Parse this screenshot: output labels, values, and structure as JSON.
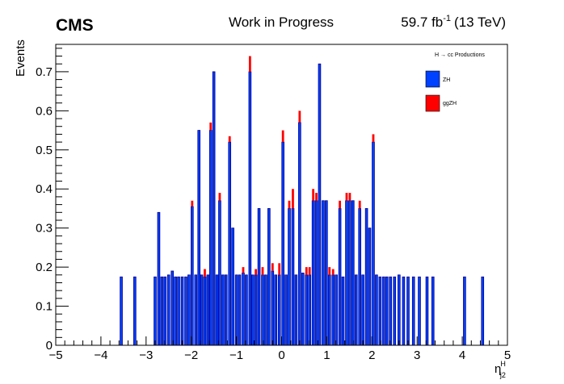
{
  "header": {
    "experiment": "CMS",
    "status": "Work in Progress",
    "lumi_value": "59.7 fb",
    "lumi_exp": "-1",
    "energy": "(13 TeV)"
  },
  "chart_data": {
    "type": "bar",
    "stacked": true,
    "xlabel": "η",
    "xlabel_sup": "H",
    "xlabel_sub": "j2",
    "ylabel": "Events",
    "xlim": [
      -5,
      5
    ],
    "ylim": [
      0,
      0.77
    ],
    "xticks": [
      -5,
      -4,
      -3,
      -2,
      -1,
      0,
      1,
      2,
      3,
      4,
      5
    ],
    "xtick_labels": [
      "−5",
      "−4",
      "−3",
      "−2",
      "−1",
      "0",
      "1",
      "2",
      "3",
      "4",
      "5"
    ],
    "yticks": [
      0,
      0.1,
      0.2,
      0.3,
      0.4,
      0.5,
      0.6,
      0.7
    ],
    "ytick_labels": [
      "0",
      "0.1",
      "0.2",
      "0.3",
      "0.4",
      "0.5",
      "0.6",
      "0.7"
    ],
    "grid": false,
    "legend": {
      "title": "H → cc Productions",
      "position": "top-right",
      "entries": [
        {
          "name": "ZH",
          "color": "#0040ff"
        },
        {
          "name": "ggZH",
          "color": "#ff0000"
        }
      ]
    },
    "series": [
      {
        "name": "ZH",
        "color": "#0040ff",
        "x": [
          -3.55,
          -3.25,
          -2.8,
          -2.72,
          -2.65,
          -2.58,
          -2.5,
          -2.42,
          -2.35,
          -2.28,
          -2.2,
          -2.12,
          -2.05,
          -1.98,
          -1.9,
          -1.83,
          -1.77,
          -1.7,
          -1.63,
          -1.57,
          -1.5,
          -1.43,
          -1.37,
          -1.3,
          -1.23,
          -1.15,
          -1.08,
          -1.0,
          -0.93,
          -0.85,
          -0.78,
          -0.7,
          -0.64,
          -0.57,
          -0.5,
          -0.42,
          -0.35,
          -0.28,
          -0.2,
          -0.13,
          -0.05,
          0.03,
          0.1,
          0.17,
          0.25,
          0.32,
          0.4,
          0.47,
          0.55,
          0.62,
          0.7,
          0.77,
          0.84,
          0.92,
          0.99,
          1.06,
          1.14,
          1.21,
          1.29,
          1.36,
          1.44,
          1.51,
          1.58,
          1.65,
          1.73,
          1.8,
          1.88,
          1.95,
          2.03,
          2.1,
          2.18,
          2.26,
          2.33,
          2.41,
          2.5,
          2.6,
          2.7,
          2.8,
          2.92,
          3.05,
          3.22,
          3.35,
          4.05,
          4.45
        ],
        "values": [
          0.175,
          0.175,
          0.175,
          0.34,
          0.175,
          0.175,
          0.18,
          0.19,
          0.175,
          0.175,
          0.175,
          0.175,
          0.18,
          0.355,
          0.18,
          0.55,
          0.18,
          0.175,
          0.18,
          0.55,
          0.7,
          0.18,
          0.37,
          0.18,
          0.18,
          0.52,
          0.3,
          0.18,
          0.18,
          0.185,
          0.18,
          0.7,
          0.18,
          0.18,
          0.35,
          0.18,
          0.18,
          0.35,
          0.19,
          0.18,
          0.18,
          0.52,
          0.18,
          0.35,
          0.35,
          0.18,
          0.57,
          0.185,
          0.18,
          0.18,
          0.37,
          0.37,
          0.72,
          0.37,
          0.37,
          0.18,
          0.18,
          0.18,
          0.35,
          0.175,
          0.37,
          0.37,
          0.37,
          0.18,
          0.35,
          0.18,
          0.35,
          0.3,
          0.52,
          0.18,
          0.175,
          0.175,
          0.175,
          0.175,
          0.175,
          0.18,
          0.175,
          0.175,
          0.175,
          0.175,
          0.175,
          0.175,
          0.175,
          0.175
        ]
      },
      {
        "name": "ggZH",
        "color": "#ff0000",
        "x": [
          -1.98,
          -1.7,
          -1.57,
          -1.37,
          -1.15,
          -0.85,
          -0.7,
          -0.57,
          -0.42,
          -0.2,
          -0.05,
          0.03,
          0.17,
          0.25,
          0.4,
          0.55,
          0.62,
          0.7,
          0.77,
          1.06,
          1.14,
          1.29,
          1.44,
          1.51,
          1.73,
          2.03
        ],
        "values": [
          0.015,
          0.02,
          0.02,
          0.02,
          0.015,
          0.015,
          0.04,
          0.015,
          0.02,
          0.02,
          0.03,
          0.03,
          0.02,
          0.05,
          0.03,
          0.02,
          0.02,
          0.03,
          0.02,
          0.02,
          0.015,
          0.02,
          0.02,
          0.02,
          0.02,
          0.02
        ]
      }
    ]
  }
}
